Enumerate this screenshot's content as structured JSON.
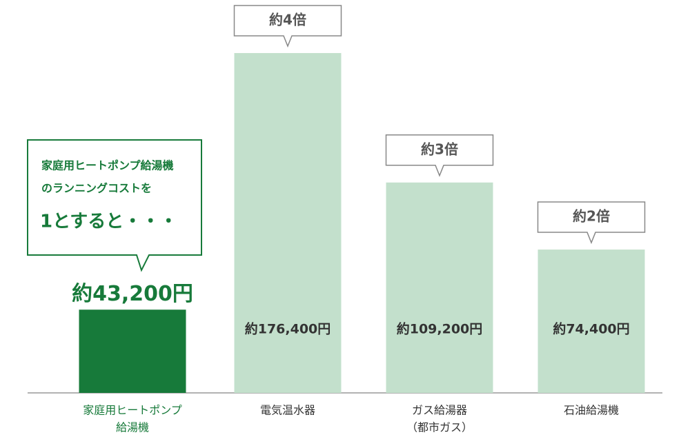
{
  "chart_data": {
    "type": "bar",
    "note": [
      "家庭用ヒートポンプ給湯機",
      "のランニングコストを",
      "1とすると・・・"
    ],
    "categories": [
      [
        "家庭用ヒートポンプ",
        "給湯機"
      ],
      [
        "電気温水器"
      ],
      [
        "ガス給湯器",
        "（都市ガス）"
      ],
      [
        "石油給湯機"
      ]
    ],
    "values": [
      43200,
      176400,
      109200,
      74400
    ],
    "value_labels": [
      "約43,200円",
      "約176,400円",
      "約109,200円",
      "約74,400円"
    ],
    "multipliers": [
      null,
      "約4倍",
      "約3倍",
      "約2倍"
    ],
    "colors": [
      "#177a3a",
      "#c3e0cc",
      "#c3e0cc",
      "#c3e0cc"
    ],
    "ylim": [
      0,
      200000
    ]
  }
}
